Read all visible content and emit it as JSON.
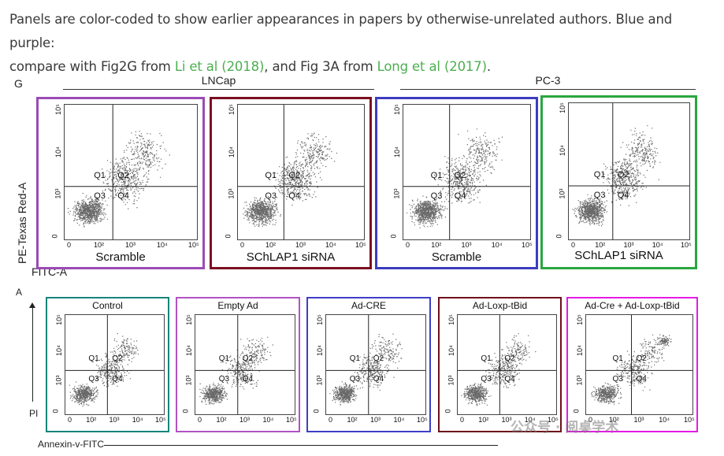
{
  "caption": {
    "line1": "Panels are color-coded to show earlier appearances in papers by otherwise-unrelated authors. Blue and purple:",
    "line2_pre": "compare with Fig2G from ",
    "link1": "Li et al (2018)",
    "line2_mid": ", and Fig 3A from ",
    "link2": "Long et al (2017)",
    "line2_post": "."
  },
  "figG": {
    "label": "G",
    "group1": "LNCap",
    "group2": "PC-3",
    "ylabel": "PE-Texas Red-A",
    "xlabel": "FITC-A",
    "panels": [
      {
        "title": "Scramble",
        "color": "#9b4bb5"
      },
      {
        "title": "SChLAP1 siRNA",
        "color": "#7a1020"
      },
      {
        "title": "Scramble",
        "color": "#3c3cc0"
      },
      {
        "title": "SChLAP1 siRNA",
        "color": "#2aa640"
      }
    ]
  },
  "figA": {
    "label": "A",
    "ylabel": "PI",
    "xlabel": "Annexin-v-FITC",
    "panels": [
      {
        "title": "Control",
        "color": "#17847a"
      },
      {
        "title": "Empty Ad",
        "color": "#b152c4"
      },
      {
        "title": "Ad-CRE",
        "color": "#3f3fc6"
      },
      {
        "title": "Ad-Loxp-tBid",
        "color": "#6d0f1a"
      },
      {
        "title": "Ad-Cre + Ad-Loxp-tBid",
        "color": "#e41ce4"
      }
    ]
  },
  "quadrants": {
    "q1": "Q1",
    "q2": "Q2",
    "q3": "Q3",
    "q4": "Q4"
  },
  "ticks": {
    "x": [
      "0",
      "10²",
      "10³",
      "10⁴",
      "10⁵"
    ],
    "y": [
      "0",
      "10³",
      "10⁴",
      "10⁵"
    ]
  },
  "watermark": "公众号 · 阅桌学术"
}
